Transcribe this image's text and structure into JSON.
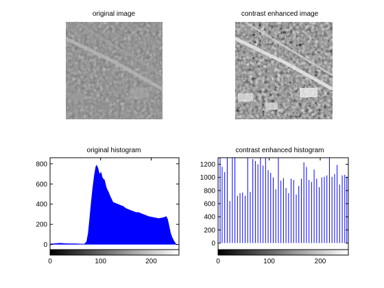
{
  "figure": {
    "panels": {
      "original_image": {
        "title": "original image"
      },
      "enhanced_image": {
        "title": "contrast enhanced image"
      }
    }
  },
  "chart_data": [
    {
      "id": "original_histogram",
      "type": "bar",
      "title": "original histogram",
      "xlabel": "",
      "ylabel": "",
      "xlim": [
        0,
        255
      ],
      "ylim": [
        -50,
        860
      ],
      "xticks": [
        0,
        100,
        200
      ],
      "yticks": [
        0,
        200,
        400,
        600,
        800
      ],
      "bar_color": "#0000ff",
      "series": [
        {
          "name": "counts",
          "points": [
            [
              0,
              8
            ],
            [
              10,
              12
            ],
            [
              20,
              15
            ],
            [
              30,
              12
            ],
            [
              40,
              10
            ],
            [
              50,
              10
            ],
            [
              60,
              8
            ],
            [
              68,
              8
            ],
            [
              72,
              30
            ],
            [
              75,
              110
            ],
            [
              78,
              260
            ],
            [
              81,
              420
            ],
            [
              84,
              560
            ],
            [
              87,
              680
            ],
            [
              90,
              770
            ],
            [
              92,
              790
            ],
            [
              95,
              760
            ],
            [
              98,
              700
            ],
            [
              101,
              720
            ],
            [
              104,
              660
            ],
            [
              108,
              640
            ],
            [
              112,
              560
            ],
            [
              116,
              520
            ],
            [
              120,
              470
            ],
            [
              125,
              420
            ],
            [
              130,
              410
            ],
            [
              135,
              400
            ],
            [
              140,
              390
            ],
            [
              145,
              380
            ],
            [
              150,
              360
            ],
            [
              155,
              350
            ],
            [
              160,
              340
            ],
            [
              165,
              330
            ],
            [
              170,
              320
            ],
            [
              175,
              320
            ],
            [
              180,
              310
            ],
            [
              185,
              300
            ],
            [
              190,
              290
            ],
            [
              195,
              280
            ],
            [
              200,
              275
            ],
            [
              205,
              270
            ],
            [
              210,
              265
            ],
            [
              215,
              260
            ],
            [
              220,
              265
            ],
            [
              225,
              270
            ],
            [
              230,
              280
            ],
            [
              233,
              250
            ],
            [
              236,
              180
            ],
            [
              239,
              110
            ],
            [
              242,
              70
            ],
            [
              245,
              40
            ],
            [
              248,
              15
            ],
            [
              250,
              5
            ],
            [
              255,
              0
            ]
          ]
        }
      ]
    },
    {
      "id": "enhanced_histogram",
      "type": "bar",
      "title": "contrast enhanced histogram",
      "xlabel": "",
      "ylabel": "",
      "xlim": [
        0,
        255
      ],
      "ylim": [
        -100,
        1300
      ],
      "xticks": [
        0,
        100,
        200
      ],
      "yticks": [
        0,
        200,
        400,
        600,
        800,
        1000,
        1200
      ],
      "bar_color": "#0000ff",
      "stems": [
        [
          4,
          1330
        ],
        [
          8,
          1160
        ],
        [
          13,
          1080
        ],
        [
          18,
          1330
        ],
        [
          23,
          640
        ],
        [
          28,
          1330
        ],
        [
          33,
          1330
        ],
        [
          38,
          720
        ],
        [
          43,
          760
        ],
        [
          48,
          770
        ],
        [
          53,
          720
        ],
        [
          58,
          1330
        ],
        [
          63,
          780
        ],
        [
          68,
          1280
        ],
        [
          73,
          1250
        ],
        [
          78,
          1200
        ],
        [
          83,
          1330
        ],
        [
          88,
          1180
        ],
        [
          93,
          1330
        ],
        [
          98,
          1110
        ],
        [
          103,
          1070
        ],
        [
          108,
          1000
        ],
        [
          113,
          820
        ],
        [
          118,
          1330
        ],
        [
          123,
          950
        ],
        [
          128,
          990
        ],
        [
          133,
          840
        ],
        [
          138,
          760
        ],
        [
          143,
          980
        ],
        [
          148,
          960
        ],
        [
          153,
          740
        ],
        [
          158,
          870
        ],
        [
          163,
          980
        ],
        [
          168,
          1230
        ],
        [
          173,
          1160
        ],
        [
          178,
          960
        ],
        [
          183,
          930
        ],
        [
          188,
          1120
        ],
        [
          193,
          980
        ],
        [
          198,
          850
        ],
        [
          203,
          1000
        ],
        [
          208,
          1010
        ],
        [
          213,
          1030
        ],
        [
          218,
          1330
        ],
        [
          223,
          1010
        ],
        [
          228,
          1050
        ],
        [
          233,
          1190
        ],
        [
          238,
          890
        ],
        [
          243,
          1030
        ],
        [
          248,
          1040
        ],
        [
          252,
          1010
        ]
      ]
    }
  ]
}
